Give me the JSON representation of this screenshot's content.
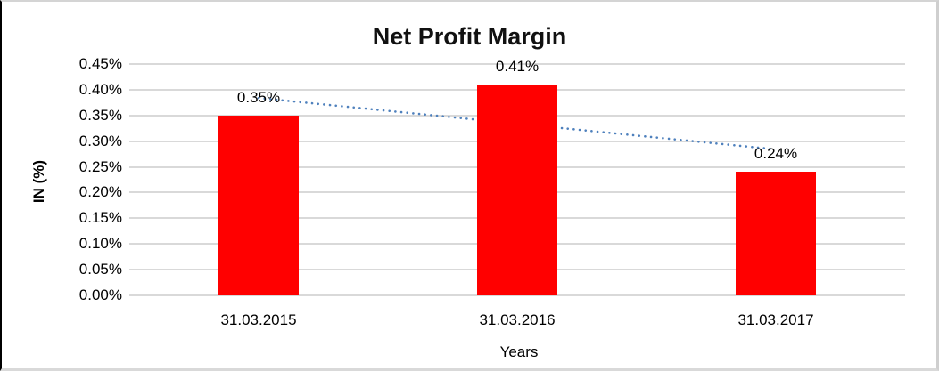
{
  "chart_data": {
    "type": "bar",
    "title": "Net Profit Margin",
    "xlabel": "Years",
    "ylabel": "IN (%)",
    "categories": [
      "31.03.2015",
      "31.03.2016",
      "31.03.2017"
    ],
    "values": [
      0.35,
      0.41,
      0.24
    ],
    "data_labels": [
      "0.35%",
      "0.41%",
      "0.24%"
    ],
    "ylim": [
      0,
      0.45
    ],
    "ytick_step": 0.05,
    "ytick_labels": [
      "0.00%",
      "0.05%",
      "0.10%",
      "0.15%",
      "0.20%",
      "0.25%",
      "0.30%",
      "0.35%",
      "0.40%",
      "0.45%"
    ],
    "grid": true,
    "legend": "none",
    "bar_color": "#ff0000",
    "gridline_color": "#d9d9d9",
    "trendline": {
      "type": "linear",
      "style": "dotted",
      "color": "#4f81bd",
      "start_value": 0.384,
      "end_value": 0.284
    }
  }
}
